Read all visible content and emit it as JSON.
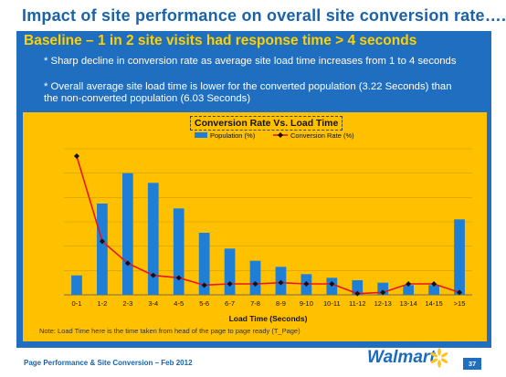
{
  "slide": {
    "title": "Impact of site performance on overall site conversion rate….",
    "baseline": "Baseline – 1 in 2 site visits had response time > 4 seconds",
    "bullets": [
      "* Sharp decline in conversion rate as average site load time increases from 1 to 4 seconds",
      "* Overall average site load time is lower for the converted population (3.22 Seconds) than",
      "the non-converted population (6.03 Seconds)"
    ],
    "note": "Note: Load Time here is the time taken from head of the page to page ready (T_Page)",
    "footer": "Page Performance & Site Conversion – Feb 2012",
    "logo_text": "Walmart",
    "page_number": "37"
  },
  "colors": {
    "accent_blue": "#1f6ec0",
    "title_blue": "#1a63a9",
    "baseline_yellow": "#ffd100",
    "chart_background": "#ffc000",
    "bar_blue": "#1f7ed6",
    "line_red": "#e8161b",
    "spark_yellow": "#ffc220"
  },
  "chart_data": {
    "type": "bar",
    "title": "Conversion Rate Vs. Load Time",
    "xlabel": "Load Time (Seconds)",
    "ylabel": "",
    "categories": [
      "0-1",
      "1-2",
      "2-3",
      "3-4",
      "4-5",
      "5-6",
      "6-7",
      "7-8",
      "8-9",
      "9-10",
      "10-11",
      "11-12",
      "12-13",
      "13-14",
      "14-15",
      ">15"
    ],
    "series": [
      {
        "name": "Population (%)",
        "kind": "bar",
        "values": [
          1.6,
          7.5,
          10.0,
          9.2,
          7.1,
          5.1,
          3.8,
          2.8,
          2.3,
          1.7,
          1.4,
          1.2,
          1.0,
          0.8,
          0.8,
          6.2
        ]
      },
      {
        "name": "Conversion Rate (%)",
        "kind": "line",
        "marker": "diamond",
        "values": [
          11.4,
          4.4,
          2.6,
          1.6,
          1.4,
          0.8,
          0.9,
          0.9,
          1.0,
          0.9,
          0.9,
          0.1,
          0.2,
          0.9,
          0.9,
          0.2
        ]
      }
    ],
    "ylim": [
      0,
      12
    ],
    "grid": true,
    "legend": "top-center"
  }
}
